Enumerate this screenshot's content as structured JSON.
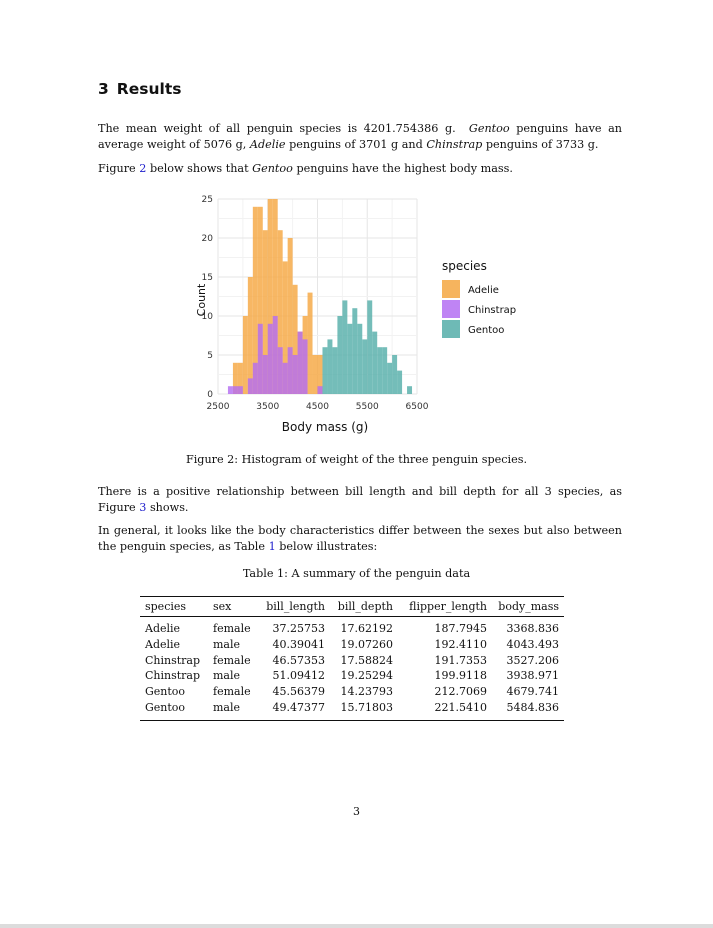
{
  "section": {
    "number": "3",
    "title": "Results"
  },
  "paragraphs": {
    "p1_a": "The mean weight of all penguin species is 4201.754386 g.",
    "p1_gentoo": "Gentoo",
    "p1_b": "penguins have an average weight of 5076 g,",
    "p1_adelie": "Adelie",
    "p1_c": "penguins of 3701 g and",
    "p1_chinstrap": "Chinstrap",
    "p1_d": "penguins of 3733 g.",
    "p2_a": "Figure",
    "p2_ref": "2",
    "p2_b": "below shows that",
    "p2_gentoo": "Gentoo",
    "p2_c": "penguins have the highest body mass.",
    "p3_a": "There is a positive relationship between bill length and bill depth for all 3 species, as Figure",
    "p3_ref": "3",
    "p3_b": "shows.",
    "p4_a": "In general, it looks like the body characteristics differ between the sexes but also between the penguin species, as Table",
    "p4_ref": "1",
    "p4_b": "below illustrates:"
  },
  "figure_caption": "Figure 2: Histogram of weight of the three penguin species.",
  "table_caption": "Table 1: A summary of the penguin data",
  "table": {
    "headers": [
      "species",
      "sex",
      "bill_length",
      "bill_depth",
      "flipper_length",
      "body_mass"
    ],
    "rows": [
      [
        "Adelie",
        "female",
        "37.25753",
        "17.62192",
        "187.7945",
        "3368.836"
      ],
      [
        "Adelie",
        "male",
        "40.39041",
        "19.07260",
        "192.4110",
        "4043.493"
      ],
      [
        "Chinstrap",
        "female",
        "46.57353",
        "17.58824",
        "191.7353",
        "3527.206"
      ],
      [
        "Chinstrap",
        "male",
        "51.09412",
        "19.25294",
        "199.9118",
        "3938.971"
      ],
      [
        "Gentoo",
        "female",
        "45.56379",
        "14.23793",
        "212.7069",
        "4679.741"
      ],
      [
        "Gentoo",
        "male",
        "49.47377",
        "15.71803",
        "221.5410",
        "5484.836"
      ]
    ]
  },
  "page_number": "3",
  "chart_data": {
    "type": "bar",
    "xlabel": "Body mass (g)",
    "ylabel": "Count",
    "xlim": [
      2500,
      6500
    ],
    "ylim": [
      0,
      25
    ],
    "x_ticks": [
      "2500",
      "3500",
      "4500",
      "5500",
      "6500"
    ],
    "y_ticks": [
      "0",
      "5",
      "10",
      "15",
      "20",
      "25"
    ],
    "bin_width": 100,
    "bin_starts": [
      2700,
      2800,
      2900,
      3000,
      3100,
      3200,
      3300,
      3400,
      3500,
      3600,
      3700,
      3800,
      3900,
      4000,
      4100,
      4200,
      4300,
      4400,
      4500,
      4600,
      4700,
      4800,
      4900,
      5000,
      5100,
      5200,
      5300,
      5400,
      5500,
      5600,
      5700,
      5800,
      5900,
      6000,
      6100,
      6200,
      6300
    ],
    "legend_title": "species",
    "legend_position": "right",
    "series": [
      {
        "name": "Adelie",
        "color": "#f5a742",
        "values": [
          0,
          4,
          4,
          10,
          15,
          24,
          24,
          21,
          25,
          25,
          21,
          17,
          20,
          14,
          8,
          10,
          13,
          5,
          5,
          0,
          0,
          0,
          0,
          0,
          0,
          0,
          0,
          0,
          0,
          0,
          0,
          0,
          0,
          0,
          0,
          0,
          0
        ]
      },
      {
        "name": "Chinstrap",
        "color": "#b46ef2",
        "values": [
          1,
          1,
          1,
          0,
          2,
          4,
          9,
          5,
          9,
          10,
          6,
          4,
          6,
          5,
          8,
          7,
          0,
          0,
          1,
          0,
          0,
          0,
          0,
          0,
          0,
          0,
          0,
          0,
          0,
          0,
          0,
          0,
          0,
          0,
          0,
          0,
          0
        ]
      },
      {
        "name": "Gentoo",
        "color": "#55aea9",
        "values": [
          0,
          0,
          0,
          0,
          0,
          0,
          0,
          0,
          0,
          0,
          0,
          0,
          0,
          0,
          0,
          0,
          0,
          0,
          0,
          6,
          7,
          6,
          10,
          12,
          9,
          11,
          9,
          7,
          12,
          8,
          6,
          6,
          4,
          5,
          3,
          0,
          1
        ]
      }
    ]
  }
}
